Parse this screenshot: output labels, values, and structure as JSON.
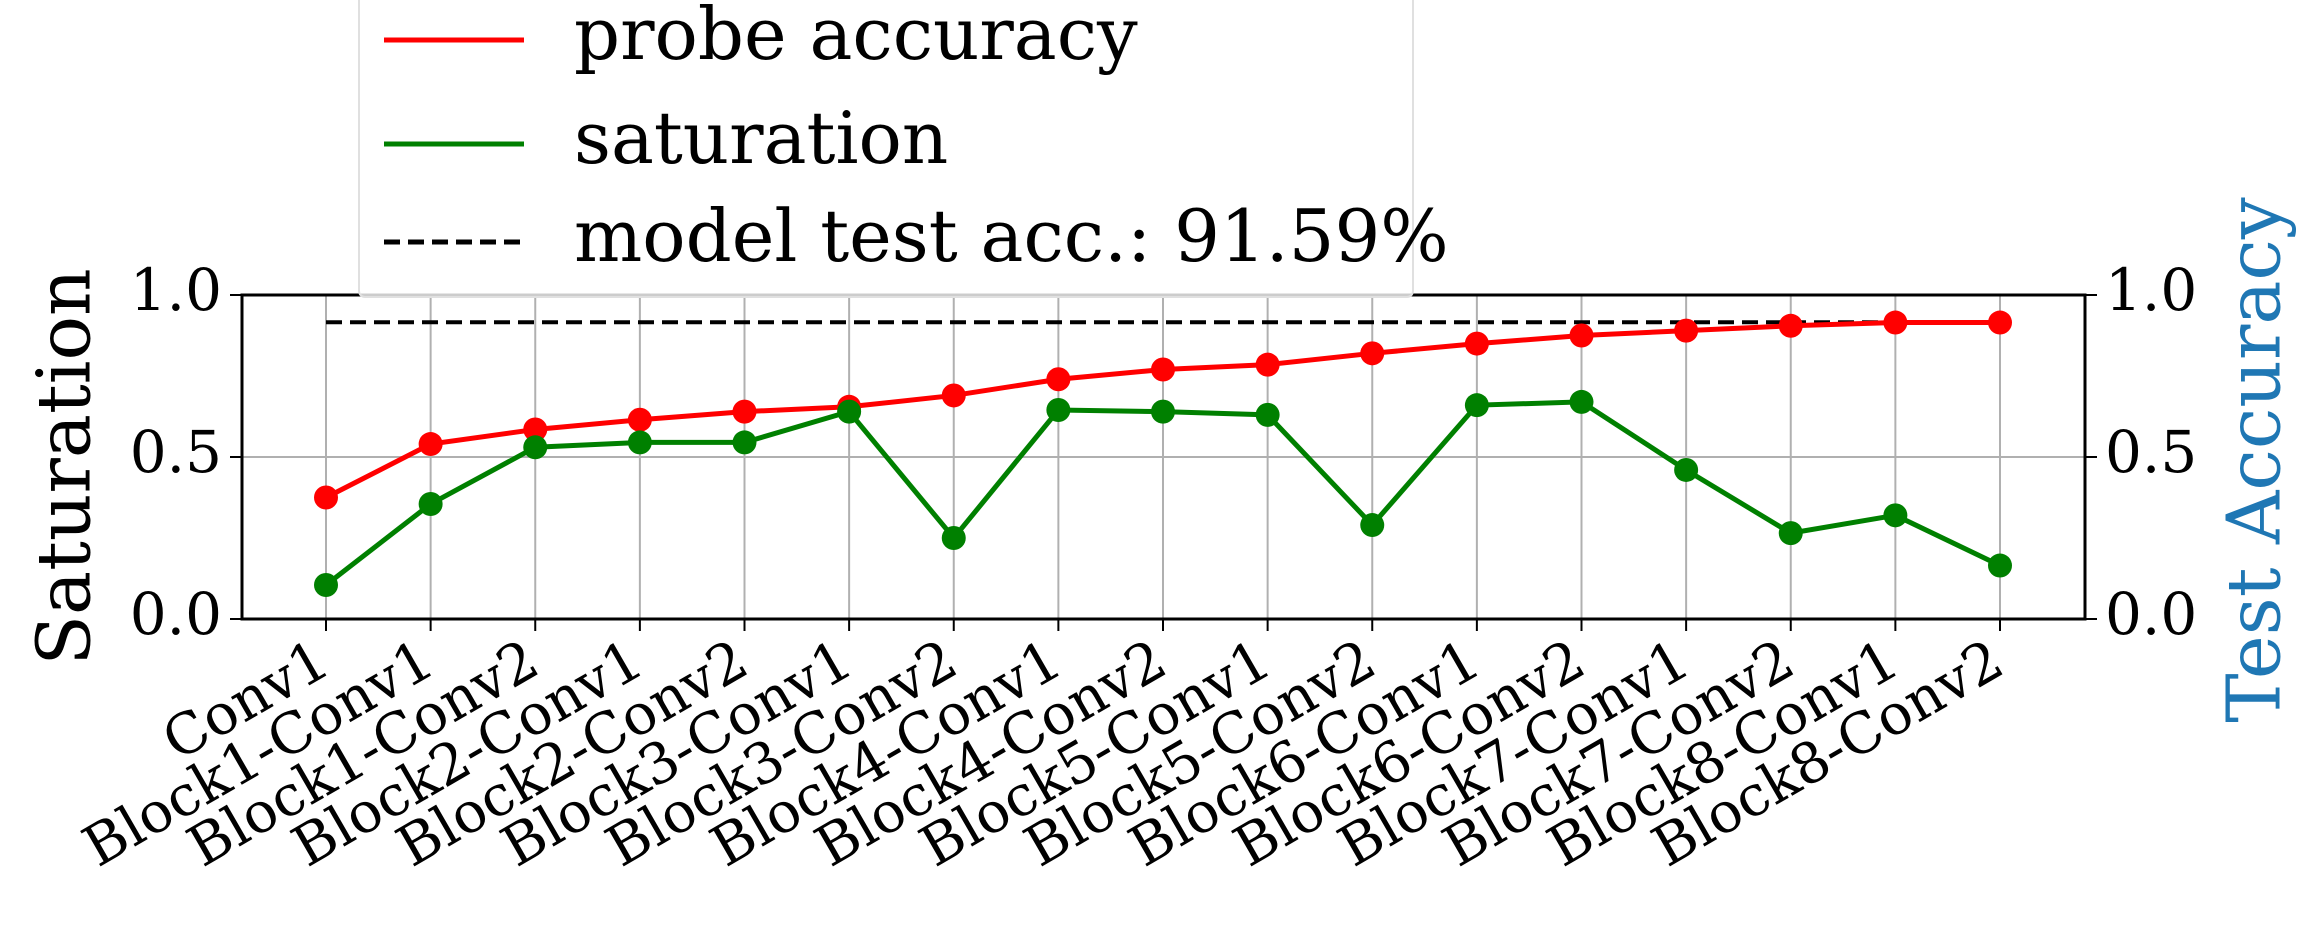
{
  "chart_data": {
    "type": "line",
    "categories": [
      "Conv1",
      "Block1-Conv1",
      "Block1-Conv2",
      "Block2-Conv1",
      "Block2-Conv2",
      "Block3-Conv1",
      "Block3-Conv2",
      "Block4-Conv1",
      "Block4-Conv2",
      "Block5-Conv1",
      "Block5-Conv2",
      "Block6-Conv1",
      "Block6-Conv2",
      "Block7-Conv1",
      "Block7-Conv2",
      "Block8-Conv1",
      "Block8-Conv2"
    ],
    "series": [
      {
        "name": "probe accuracy",
        "color": "#ff0000",
        "axis": "y2",
        "values": [
          0.375,
          0.54,
          0.585,
          0.615,
          0.64,
          0.655,
          0.69,
          0.74,
          0.77,
          0.785,
          0.82,
          0.85,
          0.875,
          0.89,
          0.905,
          0.915,
          0.915
        ]
      },
      {
        "name": "saturation",
        "color": "#008000",
        "values": [
          0.105,
          0.355,
          0.53,
          0.545,
          0.545,
          0.64,
          0.25,
          0.645,
          0.64,
          0.63,
          0.29,
          0.66,
          0.67,
          0.46,
          0.265,
          0.32,
          0.165
        ]
      }
    ],
    "reference_line": {
      "name": "model test acc.: 91.59%",
      "value": 0.9159,
      "color": "#000000",
      "axis": "y2"
    },
    "ylabel": "Saturation",
    "y2label": "Test Accuracy",
    "y2label_color": "#1f77b4",
    "ylim": [
      0,
      1
    ],
    "yticks": [
      {
        "value": 0,
        "label": "0.0"
      },
      0.5,
      {
        "value": 1,
        "label": "1.0"
      }
    ],
    "y2lim": [
      0,
      1
    ],
    "y2ticks": [
      {
        "value": 0,
        "label": "0.0"
      },
      0.5,
      {
        "value": 1,
        "label": "1.0"
      }
    ],
    "grid": true
  }
}
